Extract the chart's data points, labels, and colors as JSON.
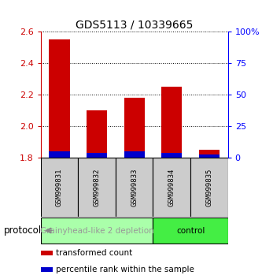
{
  "title": "GDS5113 / 10339665",
  "samples": [
    "GSM999831",
    "GSM999832",
    "GSM999833",
    "GSM999834",
    "GSM999835"
  ],
  "red_values": [
    2.55,
    2.1,
    2.18,
    2.25,
    1.85
  ],
  "blue_values": [
    0.04,
    0.03,
    0.04,
    0.03,
    0.02
  ],
  "bar_base": 1.8,
  "ylim": [
    1.8,
    2.6
  ],
  "y_ticks_left": [
    1.8,
    2.0,
    2.2,
    2.4,
    2.6
  ],
  "y_ticks_right": [
    0,
    25,
    50,
    75,
    100
  ],
  "y_right_labels": [
    "0",
    "25",
    "50",
    "75",
    "100%"
  ],
  "groups": [
    {
      "label": "Grainyhead-like 2 depletion",
      "samples": [
        0,
        1,
        2
      ],
      "color": "#aaffaa",
      "text_color": "#999999"
    },
    {
      "label": "control",
      "samples": [
        3,
        4
      ],
      "color": "#44ee44",
      "text_color": "#000000"
    }
  ],
  "red_color": "#cc0000",
  "blue_color": "#0000cc",
  "bar_width": 0.55,
  "bg_color": "#ffffff",
  "protocol_label": "protocol",
  "legend_items": [
    {
      "color": "#cc0000",
      "label": "transformed count"
    },
    {
      "color": "#0000cc",
      "label": "percentile rank within the sample"
    }
  ],
  "title_fontsize": 10,
  "tick_fontsize": 8,
  "sample_fontsize": 6.5,
  "group_fontsize": 7.5,
  "legend_fontsize": 7.5
}
